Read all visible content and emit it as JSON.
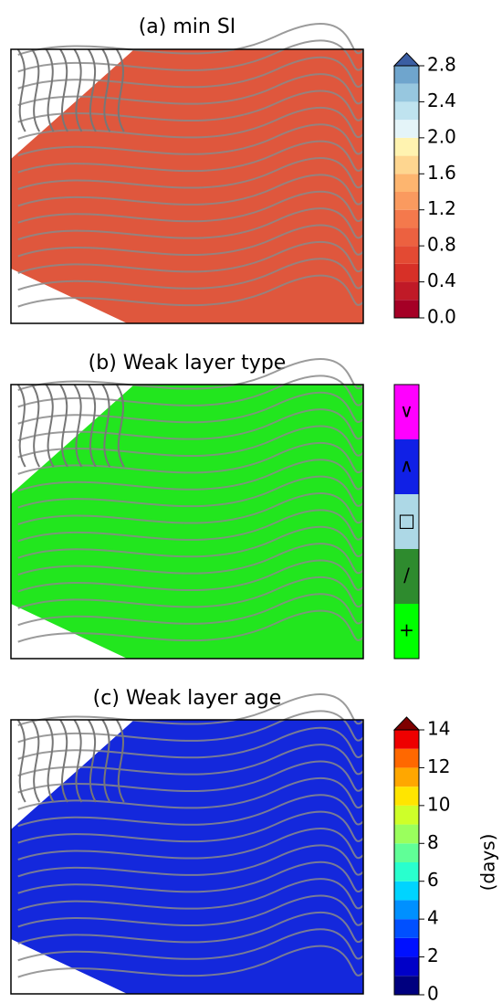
{
  "chart_data": [
    {
      "type": "map",
      "title": "(a) min SI",
      "fill": "#df573d",
      "colorbar": {
        "lim": [
          0,
          2.8
        ],
        "extend_color": "#3b5ea3",
        "colors": [
          "#a50026",
          "#c01a27",
          "#d73027",
          "#e34a33",
          "#ec6140",
          "#f4794c",
          "#fa9a5f",
          "#fdb56f",
          "#fed690",
          "#fff3b0",
          "#e4f4f8",
          "#bfe3ef",
          "#97c7df",
          "#6fa5cd"
        ],
        "ticks": [
          {
            "value": 0,
            "label": "0.0"
          },
          {
            "value": 0.4,
            "label": "0.4"
          },
          {
            "value": 0.8,
            "label": "0.8"
          },
          {
            "value": 1.2,
            "label": "1.2"
          },
          {
            "value": 1.6,
            "label": "1.6"
          },
          {
            "value": 2.0,
            "label": "2.0"
          },
          {
            "value": 2.4,
            "label": "2.4"
          },
          {
            "value": 2.8,
            "label": "2.8"
          }
        ]
      }
    },
    {
      "type": "map",
      "title": "(b) Weak layer type",
      "fill": "#22e61e",
      "colorbar": {
        "categories": [
          "+",
          "/",
          "□",
          "∧",
          "∨"
        ],
        "colors": [
          "#00ff00",
          "#2e8b2e",
          "#add8e6",
          "#1020e6",
          "#ff00ff"
        ]
      }
    },
    {
      "type": "map",
      "title": "(c) Weak layer age",
      "fill": "#1428dc",
      "colorbar": {
        "lim": [
          0,
          14
        ],
        "extend_color": "#7f0000",
        "label": "(days)",
        "colors": [
          "#00007f",
          "#0000c8",
          "#0010ff",
          "#0050ff",
          "#0090ff",
          "#00d4ff",
          "#29ffce",
          "#60ff97",
          "#9aff5d",
          "#ceff29",
          "#ffe500",
          "#ffa700",
          "#ff6800",
          "#ee0000"
        ],
        "ticks": [
          0,
          2,
          4,
          6,
          8,
          10,
          12,
          14
        ]
      }
    }
  ]
}
